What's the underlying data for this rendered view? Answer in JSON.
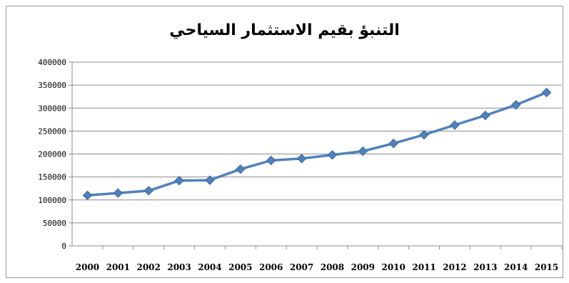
{
  "chart_data": {
    "type": "line",
    "title": "التنبؤ بقيم الاستثمار السياحي",
    "xlabel": "",
    "ylabel": "",
    "categories": [
      "2000",
      "2001",
      "2002",
      "2003",
      "2004",
      "2005",
      "2006",
      "2007",
      "2008",
      "2009",
      "2010",
      "2011",
      "2012",
      "2013",
      "2014",
      "2015"
    ],
    "series": [
      {
        "values": [
          110000,
          115000,
          120000,
          142000,
          143000,
          167000,
          186000,
          190000,
          198000,
          206000,
          223000,
          242000,
          263000,
          284000,
          307000,
          334000
        ],
        "color": "#4f81bd",
        "marker": "diamond"
      }
    ],
    "ylim": [
      0,
      400000
    ],
    "yticks": [
      0,
      50000,
      100000,
      150000,
      200000,
      250000,
      300000,
      350000,
      400000
    ],
    "grid": true,
    "legend": "none"
  }
}
